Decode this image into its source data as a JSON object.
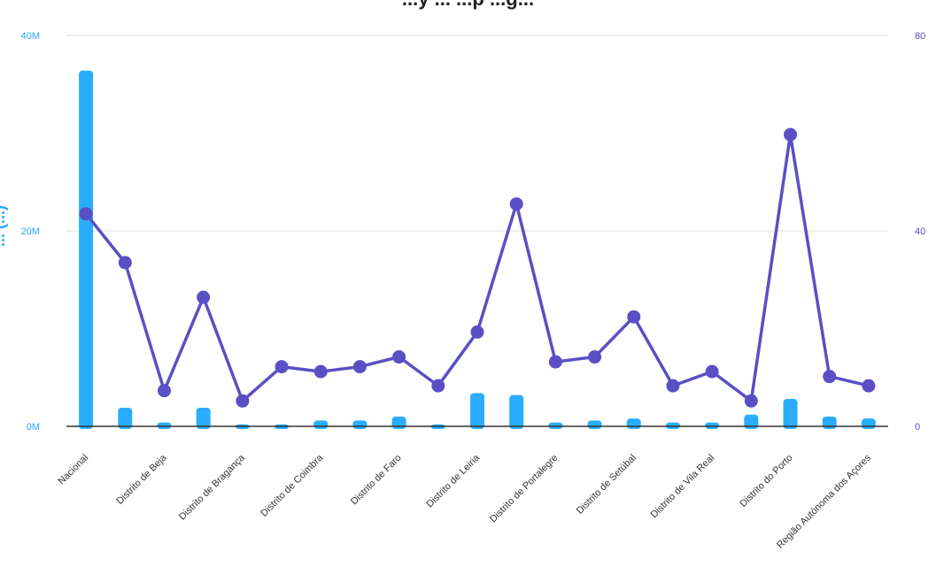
{
  "chart_data": {
    "type": "bar",
    "title": "...y ... ...p ...g...",
    "left_axis_title": "... (...)",
    "categories": [
      "Nacional",
      "Distrito de Beja",
      "Distrito de Bragança",
      "Distrito de Coimbra",
      "Distrito de Faro",
      "Distrito de Leiria",
      "Distrito de Portalegre",
      "Distrito de Setúbal",
      "Distrito de Vila Real",
      "Distrito do Porto",
      "Região Autónoma dos Açores"
    ],
    "x": [
      "Nacional",
      "",
      "Distrito de Beja",
      "",
      "Distrito de Bragança",
      "",
      "Distrito de Coimbra",
      "",
      "Distrito de Faro",
      "",
      "Distrito de Leiria",
      "",
      "Distrito de Portalegre",
      "",
      "Distrito de Setúbal",
      "",
      "Distrito de Vila Real",
      "",
      "Distrito do Porto",
      "",
      "Região Autónoma dos Açores"
    ],
    "series": [
      {
        "type": "bar",
        "axis": "left",
        "color": "#2aadff",
        "values": [
          36.4,
          1.9,
          0.4,
          1.9,
          0.2,
          0.2,
          0.6,
          0.6,
          1.0,
          0.2,
          3.4,
          3.2,
          0.4,
          0.6,
          0.8,
          0.4,
          0.4,
          1.2,
          2.8,
          1.0,
          0.8
        ]
      },
      {
        "type": "line",
        "axis": "right",
        "color": "#5a4fc4",
        "values": [
          43.5,
          33.5,
          7.3,
          26.4,
          5.2,
          12.2,
          11.2,
          12.2,
          14.2,
          8.3,
          19.3,
          45.5,
          13.2,
          14.2,
          22.4,
          8.3,
          11.2,
          5.2,
          59.7,
          10.2,
          8.3
        ]
      }
    ],
    "left_axis": {
      "ylim": [
        0,
        40
      ],
      "ticks": [
        "0M",
        "20M",
        "40M"
      ],
      "color": "#2aa7ff"
    },
    "right_axis": {
      "ylim": [
        0,
        80
      ],
      "ticks": [
        "0",
        "40",
        "80"
      ],
      "color": "#5a4fc4"
    },
    "grid": true
  }
}
